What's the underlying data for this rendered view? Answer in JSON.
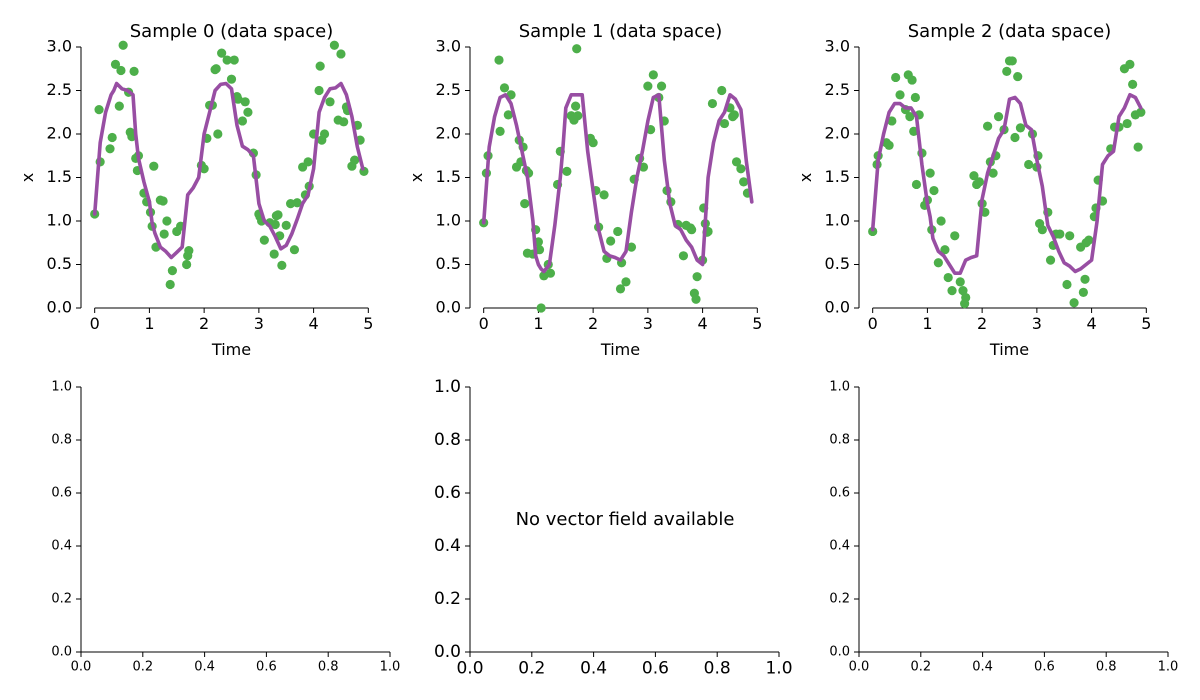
{
  "colors": {
    "points": "#4daf4a",
    "trajectory": "#984ea3"
  },
  "message": "No vector field available",
  "chart_data": [
    {
      "type": "line+scatter",
      "title": "Sample 0 (data space)",
      "xlabel": "Time",
      "ylabel": "x",
      "xlim": [
        -0.25,
        5.25
      ],
      "ylim": [
        0,
        3
      ],
      "xticks": [
        "0",
        "1",
        "2",
        "3",
        "4",
        "5"
      ],
      "yticks": [
        "0.0",
        "0.5",
        "1.0",
        "1.5",
        "2.0",
        "2.5",
        "3.0"
      ],
      "series": [
        {
          "kind": "scatter",
          "x": [
            0.0,
            0.08,
            0.1,
            0.28,
            0.32,
            0.38,
            0.45,
            0.48,
            0.52,
            0.62,
            0.65,
            0.68,
            0.72,
            0.75,
            0.78,
            0.8,
            0.9,
            0.95,
            1.02,
            1.05,
            1.08,
            1.12,
            1.2,
            1.25,
            1.27,
            1.32,
            1.38,
            1.42,
            1.5,
            1.57,
            1.68,
            1.7,
            1.72,
            1.95,
            2.0,
            2.05,
            2.1,
            2.15,
            2.2,
            2.22,
            2.25,
            2.32,
            2.42,
            2.5,
            2.55,
            2.6,
            2.62,
            2.7,
            2.75,
            2.8,
            2.9,
            2.95,
            3.0,
            3.02,
            3.05,
            3.1,
            3.2,
            3.28,
            3.3,
            3.32,
            3.35,
            3.38,
            3.42,
            3.5,
            3.58,
            3.65,
            3.7,
            3.8,
            3.85,
            3.9,
            3.92,
            4.0,
            4.1,
            4.12,
            4.15,
            4.2,
            4.3,
            4.38,
            4.45,
            4.5,
            4.55,
            4.6,
            4.62,
            4.7,
            4.75,
            4.8,
            4.85,
            4.92
          ],
          "y": [
            1.08,
            2.28,
            1.68,
            1.83,
            1.96,
            2.8,
            2.32,
            2.73,
            3.02,
            2.48,
            2.02,
            1.97,
            2.72,
            1.72,
            1.58,
            1.75,
            1.32,
            1.22,
            1.1,
            0.94,
            1.63,
            0.7,
            1.24,
            1.23,
            0.85,
            1.0,
            0.27,
            0.43,
            0.88,
            0.94,
            0.5,
            0.6,
            0.66,
            1.64,
            1.6,
            1.95,
            2.33,
            2.33,
            2.74,
            2.75,
            2.0,
            2.93,
            2.85,
            2.63,
            2.85,
            2.43,
            2.4,
            2.15,
            2.37,
            2.25,
            1.78,
            1.53,
            1.08,
            1.05,
            1.0,
            0.78,
            0.98,
            0.62,
            0.96,
            1.06,
            1.07,
            0.83,
            0.49,
            0.95,
            1.2,
            0.67,
            1.21,
            1.62,
            1.3,
            1.68,
            1.4,
            2.0,
            2.5,
            2.78,
            1.93,
            2.0,
            2.37,
            3.02,
            2.16,
            2.92,
            2.14,
            2.31,
            2.27,
            1.63,
            1.7,
            2.1,
            1.93,
            1.57
          ]
        },
        {
          "kind": "line",
          "x": [
            0.0,
            0.1,
            0.2,
            0.3,
            0.35,
            0.4,
            0.5,
            0.6,
            0.7,
            0.75,
            0.8,
            0.9,
            1.0,
            1.05,
            1.1,
            1.2,
            1.3,
            1.4,
            1.5,
            1.6,
            1.7,
            1.8,
            1.9,
            2.0,
            2.1,
            2.2,
            2.3,
            2.4,
            2.5,
            2.6,
            2.7,
            2.8,
            2.9,
            3.0,
            3.1,
            3.2,
            3.3,
            3.4,
            3.5,
            3.6,
            3.7,
            3.8,
            3.9,
            4.0,
            4.1,
            4.2,
            4.3,
            4.4,
            4.5,
            4.6,
            4.7,
            4.8,
            4.9
          ],
          "y": [
            1.08,
            1.9,
            2.25,
            2.45,
            2.5,
            2.58,
            2.52,
            2.5,
            2.45,
            2.0,
            1.72,
            1.45,
            1.22,
            0.98,
            0.86,
            0.7,
            0.65,
            0.58,
            0.64,
            0.7,
            1.3,
            1.38,
            1.5,
            2.0,
            2.25,
            2.5,
            2.57,
            2.58,
            2.52,
            2.1,
            1.86,
            1.82,
            1.75,
            1.2,
            1.0,
            0.94,
            0.82,
            0.68,
            0.72,
            0.85,
            1.02,
            1.2,
            1.3,
            1.6,
            2.25,
            2.42,
            2.52,
            2.53,
            2.58,
            2.45,
            2.2,
            1.85,
            1.6
          ]
        }
      ]
    },
    {
      "type": "line+scatter",
      "title": "Sample 1 (data space)",
      "xlabel": "Time",
      "ylabel": "x",
      "xlim": [
        -0.25,
        5.25
      ],
      "ylim": [
        0,
        3
      ],
      "xticks": [
        "0",
        "1",
        "2",
        "3",
        "4",
        "5"
      ],
      "yticks": [
        "0.0",
        "0.5",
        "1.0",
        "1.5",
        "2.0",
        "2.5",
        "3.0"
      ],
      "series": [
        {
          "kind": "scatter",
          "x": [
            0.0,
            0.05,
            0.08,
            0.28,
            0.3,
            0.38,
            0.45,
            0.5,
            0.6,
            0.65,
            0.68,
            0.72,
            0.75,
            0.78,
            0.8,
            0.82,
            0.9,
            0.95,
            1.0,
            1.02,
            1.05,
            1.1,
            1.18,
            1.22,
            1.35,
            1.4,
            1.52,
            1.6,
            1.65,
            1.68,
            1.7,
            1.72,
            1.95,
            2.0,
            2.05,
            2.1,
            2.2,
            2.25,
            2.32,
            2.45,
            2.5,
            2.52,
            2.6,
            2.7,
            2.75,
            2.85,
            2.92,
            3.0,
            3.05,
            3.1,
            3.2,
            3.25,
            3.3,
            3.35,
            3.42,
            3.55,
            3.65,
            3.7,
            3.78,
            3.8,
            3.85,
            3.88,
            3.9,
            4.0,
            4.02,
            4.05,
            4.08,
            4.1,
            4.18,
            4.35,
            4.4,
            4.5,
            4.55,
            4.58,
            4.62,
            4.7,
            4.75,
            4.82
          ],
          "y": [
            0.98,
            1.55,
            1.75,
            2.85,
            2.03,
            2.53,
            2.22,
            2.45,
            1.62,
            1.93,
            1.68,
            1.85,
            1.2,
            1.58,
            0.63,
            1.55,
            0.62,
            0.9,
            0.76,
            0.67,
            0.0,
            0.37,
            0.5,
            0.4,
            1.42,
            1.8,
            1.57,
            2.21,
            2.16,
            2.32,
            2.98,
            2.21,
            1.95,
            1.9,
            1.35,
            0.93,
            1.3,
            0.57,
            0.77,
            0.88,
            0.22,
            0.52,
            0.3,
            0.7,
            1.48,
            1.72,
            1.62,
            2.55,
            2.05,
            2.68,
            2.42,
            2.55,
            2.15,
            1.35,
            1.22,
            0.96,
            0.6,
            0.95,
            0.92,
            0.9,
            0.17,
            0.1,
            0.36,
            0.55,
            1.15,
            0.97,
            0.87,
            0.88,
            2.35,
            2.5,
            2.12,
            2.3,
            2.2,
            2.22,
            1.68,
            1.6,
            1.45,
            1.32
          ]
        },
        {
          "kind": "line",
          "x": [
            0.0,
            0.1,
            0.2,
            0.3,
            0.4,
            0.5,
            0.6,
            0.7,
            0.8,
            0.9,
            0.95,
            1.0,
            1.05,
            1.1,
            1.2,
            1.3,
            1.4,
            1.45,
            1.5,
            1.6,
            1.7,
            1.8,
            1.9,
            2.0,
            2.1,
            2.2,
            2.3,
            2.4,
            2.5,
            2.6,
            2.7,
            2.8,
            2.9,
            3.0,
            3.1,
            3.2,
            3.3,
            3.4,
            3.5,
            3.6,
            3.7,
            3.8,
            3.9,
            4.0,
            4.1,
            4.2,
            4.3,
            4.4,
            4.5,
            4.6,
            4.7,
            4.8,
            4.9
          ],
          "y": [
            0.98,
            1.85,
            2.2,
            2.42,
            2.45,
            2.35,
            2.1,
            1.8,
            1.5,
            1.0,
            0.6,
            0.5,
            0.45,
            0.42,
            0.5,
            0.95,
            1.5,
            1.85,
            2.3,
            2.45,
            2.45,
            2.45,
            1.8,
            1.35,
            0.9,
            0.65,
            0.6,
            0.58,
            0.55,
            0.65,
            1.1,
            1.5,
            1.8,
            2.15,
            2.42,
            2.45,
            1.7,
            1.2,
            0.95,
            0.9,
            0.78,
            0.7,
            0.55,
            0.5,
            1.5,
            1.9,
            2.15,
            2.25,
            2.45,
            2.4,
            2.28,
            1.68,
            1.22
          ]
        }
      ]
    },
    {
      "type": "line+scatter",
      "title": "Sample 2 (data space)",
      "xlabel": "Time",
      "ylabel": "x",
      "xlim": [
        -0.25,
        5.25
      ],
      "ylim": [
        0,
        3
      ],
      "xticks": [
        "0",
        "1",
        "2",
        "3",
        "4",
        "5"
      ],
      "yticks": [
        "0.0",
        "0.5",
        "1.0",
        "1.5",
        "2.0",
        "2.5",
        "3.0"
      ],
      "series": [
        {
          "kind": "scatter",
          "x": [
            0.0,
            0.08,
            0.1,
            0.25,
            0.3,
            0.35,
            0.42,
            0.5,
            0.6,
            0.65,
            0.68,
            0.72,
            0.75,
            0.78,
            0.8,
            0.85,
            0.9,
            0.95,
            1.0,
            1.05,
            1.08,
            1.12,
            1.2,
            1.25,
            1.32,
            1.38,
            1.45,
            1.5,
            1.6,
            1.65,
            1.68,
            1.7,
            1.85,
            1.9,
            1.95,
            2.0,
            2.05,
            2.1,
            2.15,
            2.2,
            2.25,
            2.3,
            2.4,
            2.45,
            2.5,
            2.55,
            2.6,
            2.65,
            2.7,
            2.85,
            2.92,
            3.0,
            3.02,
            3.05,
            3.1,
            3.2,
            3.25,
            3.3,
            3.35,
            3.42,
            3.55,
            3.6,
            3.68,
            3.8,
            3.85,
            3.88,
            3.9,
            3.95,
            4.05,
            4.08,
            4.12,
            4.2,
            4.35,
            4.42,
            4.5,
            4.6,
            4.65,
            4.7,
            4.75,
            4.8,
            4.85,
            4.9
          ],
          "y": [
            0.88,
            1.65,
            1.75,
            1.9,
            1.87,
            2.15,
            2.65,
            2.45,
            2.28,
            2.68,
            2.2,
            2.62,
            2.03,
            2.42,
            1.42,
            2.22,
            1.78,
            1.18,
            1.24,
            1.55,
            0.9,
            1.35,
            0.52,
            1.0,
            0.67,
            0.35,
            0.2,
            0.83,
            0.3,
            0.2,
            0.05,
            0.12,
            1.52,
            1.42,
            1.45,
            1.2,
            1.1,
            2.09,
            1.68,
            1.55,
            1.75,
            2.2,
            2.05,
            2.72,
            2.84,
            2.84,
            1.96,
            2.66,
            2.07,
            1.65,
            2.0,
            1.62,
            1.75,
            0.97,
            0.9,
            1.1,
            0.55,
            0.72,
            0.85,
            0.85,
            0.27,
            0.83,
            0.06,
            0.7,
            0.18,
            0.33,
            0.75,
            0.78,
            1.05,
            1.15,
            1.47,
            1.23,
            1.83,
            2.08,
            2.08,
            2.75,
            2.12,
            2.8,
            2.57,
            2.22,
            1.85,
            2.25
          ]
        },
        {
          "kind": "line",
          "x": [
            0.0,
            0.1,
            0.2,
            0.3,
            0.4,
            0.5,
            0.6,
            0.7,
            0.8,
            0.9,
            1.0,
            1.05,
            1.1,
            1.2,
            1.3,
            1.4,
            1.5,
            1.6,
            1.7,
            1.8,
            1.9,
            2.0,
            2.1,
            2.2,
            2.3,
            2.4,
            2.5,
            2.6,
            2.7,
            2.8,
            2.9,
            3.0,
            3.1,
            3.2,
            3.3,
            3.4,
            3.5,
            3.6,
            3.7,
            3.8,
            3.9,
            4.0,
            4.1,
            4.2,
            4.3,
            4.4,
            4.5,
            4.6,
            4.7,
            4.8,
            4.9
          ],
          "y": [
            0.9,
            1.7,
            2.0,
            2.25,
            2.35,
            2.35,
            2.3,
            2.3,
            2.2,
            1.65,
            1.2,
            1.05,
            0.8,
            0.65,
            0.6,
            0.5,
            0.4,
            0.4,
            0.55,
            0.58,
            0.6,
            1.25,
            1.55,
            1.75,
            1.95,
            2.05,
            2.4,
            2.42,
            2.35,
            2.1,
            2.05,
            1.7,
            1.4,
            0.95,
            0.82,
            0.65,
            0.52,
            0.48,
            0.42,
            0.45,
            0.5,
            0.55,
            1.0,
            1.65,
            1.75,
            1.8,
            2.2,
            2.3,
            2.45,
            2.42,
            2.3
          ]
        }
      ]
    },
    {
      "type": "empty",
      "xlim": [
        0,
        1
      ],
      "ylim": [
        0,
        1
      ],
      "xticks": [
        "0.0",
        "0.2",
        "0.4",
        "0.6",
        "0.8",
        "1.0"
      ],
      "yticks": [
        "0.0",
        "0.2",
        "0.4",
        "0.6",
        "0.8",
        "1.0"
      ]
    },
    {
      "type": "empty",
      "xlim": [
        0,
        1
      ],
      "ylim": [
        0,
        1
      ],
      "xticks": [
        "0.0",
        "0.2",
        "0.4",
        "0.6",
        "0.8",
        "1.0"
      ],
      "yticks": [
        "0.0",
        "0.2",
        "0.4",
        "0.6",
        "0.8",
        "1.0"
      ]
    },
    {
      "type": "empty",
      "xlim": [
        0,
        1
      ],
      "ylim": [
        0,
        1
      ],
      "xticks": [
        "0.0",
        "0.2",
        "0.4",
        "0.6",
        "0.8",
        "1.0"
      ],
      "yticks": [
        "0.0",
        "0.2",
        "0.4",
        "0.6",
        "0.8",
        "1.0"
      ]
    }
  ]
}
